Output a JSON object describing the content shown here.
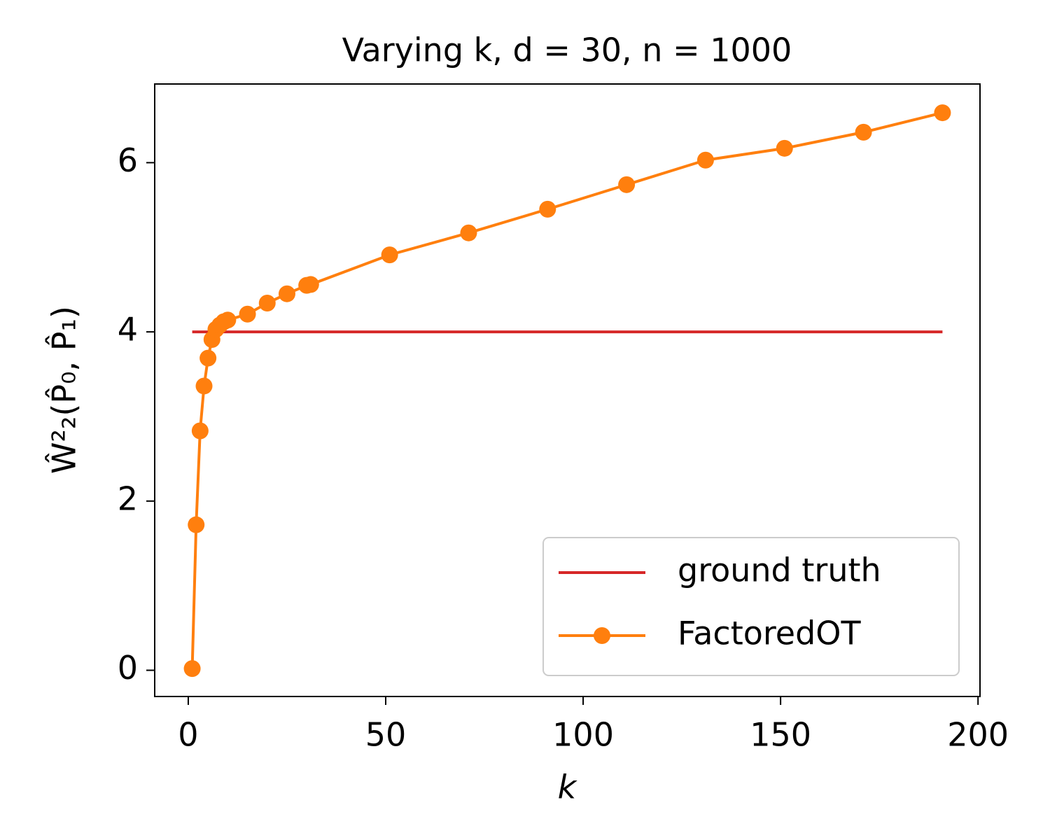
{
  "chart_data": {
    "type": "line",
    "title": "Varying k, d = 30, n = 1000",
    "xlabel": "k",
    "ylabel": "Ŵ²₂(P̂₀, P̂₁)",
    "xlim": [
      -8.5,
      200.5
    ],
    "xticks": [
      0,
      50,
      100,
      150,
      200
    ],
    "ylim": [
      -0.31,
      6.93
    ],
    "yticks": [
      0,
      2,
      4,
      6
    ],
    "grid": false,
    "legend": "lower right",
    "series": [
      {
        "name": "ground truth",
        "color": "#d62728",
        "marker": false,
        "x": [
          1,
          191
        ],
        "values": [
          4,
          4
        ]
      },
      {
        "name": "FactoredOT",
        "color": "#ff7f0e",
        "marker": true,
        "x": [
          1,
          2,
          3,
          4,
          5,
          6,
          7,
          8,
          9,
          10,
          15,
          20,
          25,
          30,
          31,
          51,
          71,
          91,
          111,
          131,
          151,
          171,
          191
        ],
        "values": [
          0.02,
          1.72,
          2.83,
          3.36,
          3.69,
          3.91,
          4.03,
          4.08,
          4.12,
          4.14,
          4.21,
          4.34,
          4.45,
          4.55,
          4.56,
          4.91,
          5.17,
          5.45,
          5.74,
          6.03,
          6.17,
          6.36,
          6.59
        ]
      }
    ]
  }
}
